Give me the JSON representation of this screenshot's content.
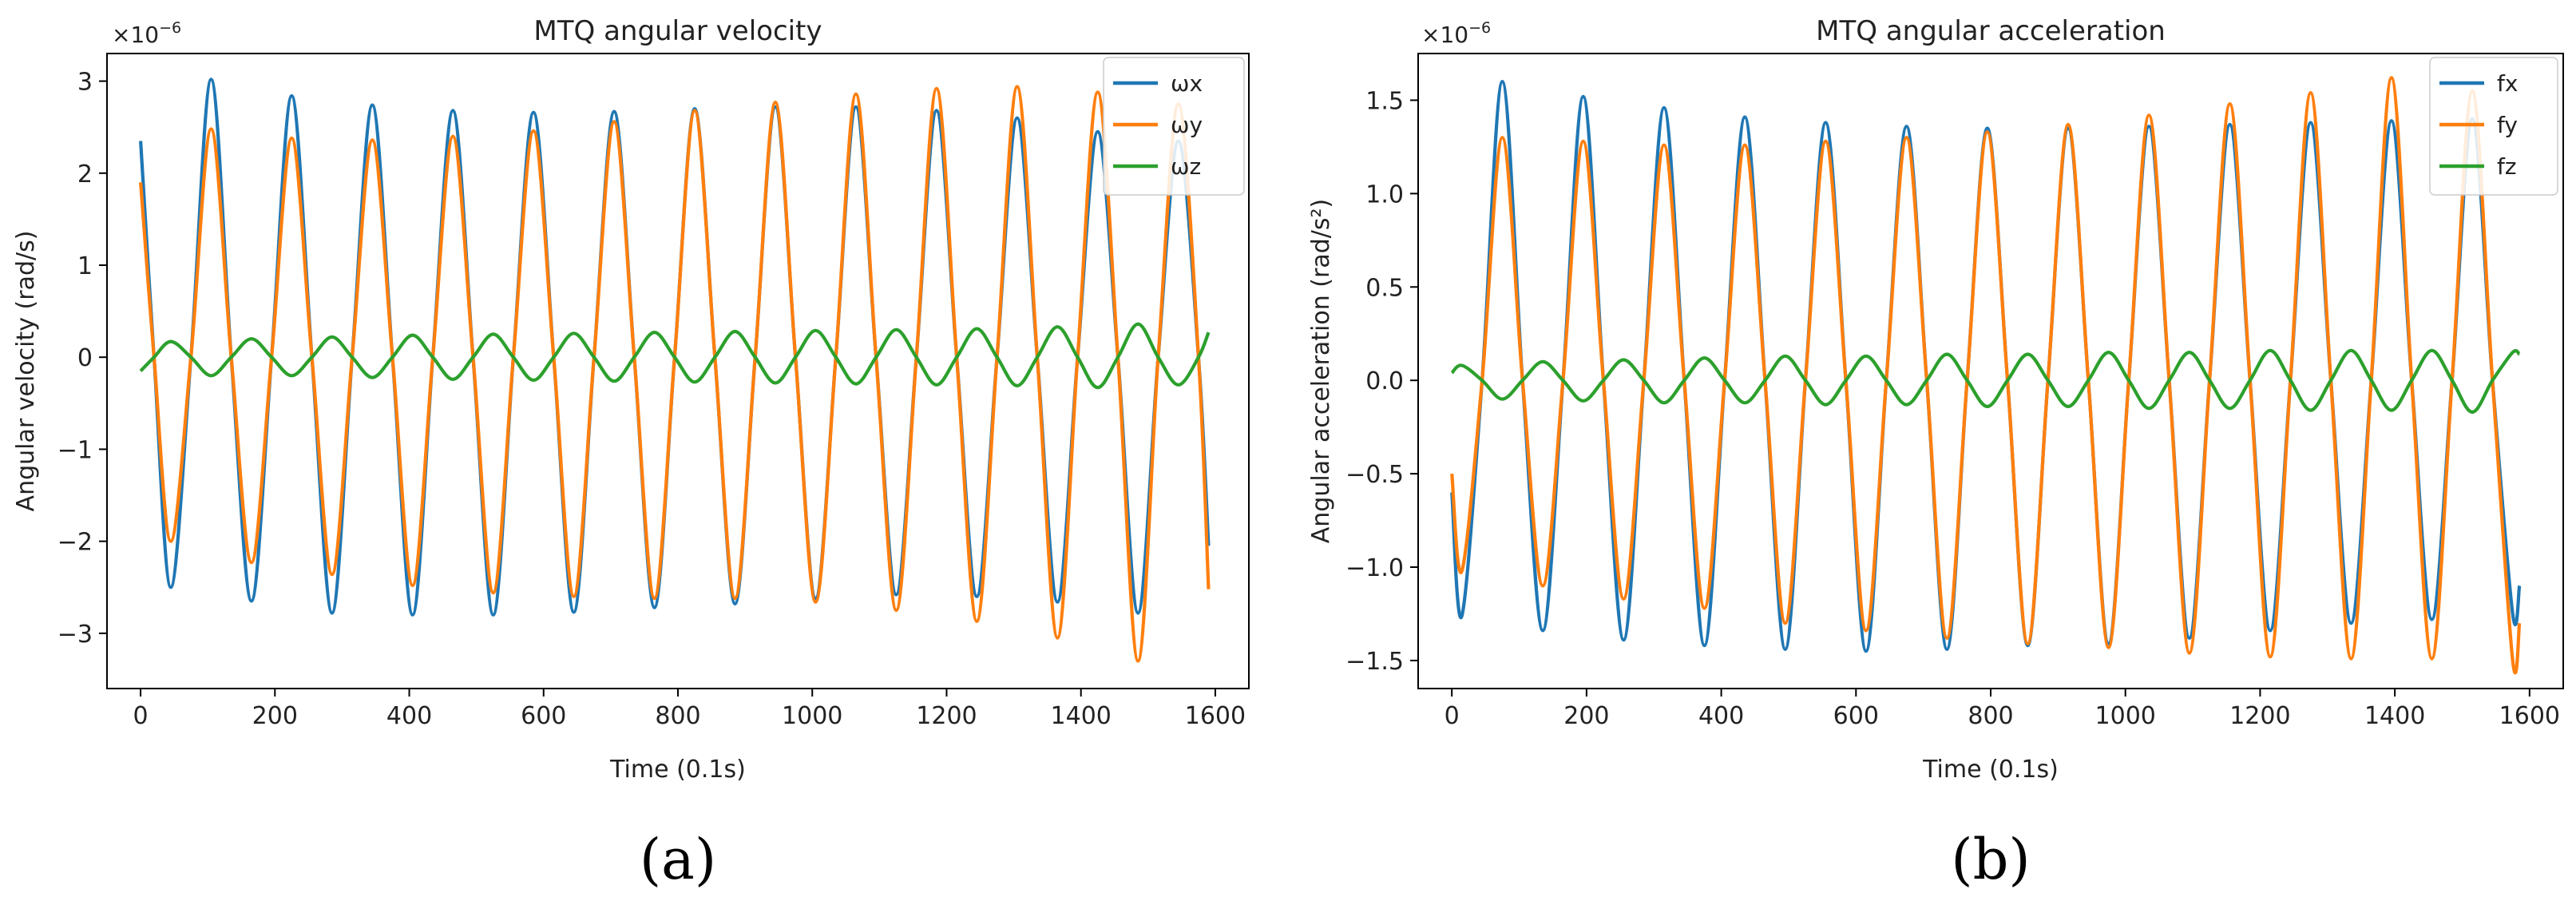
{
  "chart_data": [
    {
      "type": "line",
      "panel_label": "(a)",
      "title": "MTQ angular velocity",
      "xlabel": "Time (0.1s)",
      "ylabel": "Angular velocity (rad/s)",
      "y_scale_base": "×10",
      "y_scale_exp": "−6",
      "xlim": [
        -50,
        1650
      ],
      "ylim": [
        -3.6,
        3.3
      ],
      "xticks": [
        0,
        200,
        400,
        600,
        800,
        1000,
        1200,
        1400,
        1600
      ],
      "xtick_labels": [
        "0",
        "200",
        "400",
        "600",
        "800",
        "1000",
        "1200",
        "1400",
        "1600"
      ],
      "yticks": [
        -3,
        -2,
        -1,
        0,
        1,
        2,
        3
      ],
      "ytick_labels": [
        "−3",
        "−2",
        "−1",
        "0",
        "1",
        "2",
        "3"
      ],
      "legend_position": "top-right",
      "x": [
        0,
        20,
        45,
        75,
        105,
        135,
        165,
        195,
        225,
        255,
        285,
        315,
        345,
        375,
        405,
        435,
        465,
        495,
        525,
        555,
        585,
        615,
        645,
        675,
        705,
        735,
        765,
        795,
        825,
        855,
        885,
        915,
        945,
        975,
        1005,
        1035,
        1065,
        1095,
        1125,
        1155,
        1185,
        1215,
        1245,
        1275,
        1305,
        1335,
        1365,
        1395,
        1425,
        1455,
        1485,
        1515,
        1545,
        1575,
        1590
      ],
      "series": [
        {
          "name": "ωx",
          "color": "#1f77b4",
          "values": [
            2.35,
            0.0,
            -2.5,
            0.0,
            3.02,
            0.0,
            -2.65,
            0.0,
            2.84,
            0.0,
            -2.78,
            0.0,
            2.74,
            0.0,
            -2.8,
            0.0,
            2.68,
            0.0,
            -2.8,
            0.0,
            2.66,
            0.0,
            -2.77,
            0.0,
            2.67,
            0.0,
            -2.72,
            0.0,
            2.7,
            0.0,
            -2.68,
            0.0,
            2.72,
            0.0,
            -2.62,
            0.0,
            2.72,
            0.0,
            -2.58,
            0.0,
            2.68,
            0.0,
            -2.6,
            0.0,
            2.6,
            0.0,
            -2.66,
            0.0,
            2.45,
            0.0,
            -2.78,
            0.0,
            2.35,
            0.0,
            -2.05
          ]
        },
        {
          "name": "ωy",
          "color": "#ff7f0e",
          "values": [
            1.9,
            0.0,
            -2.0,
            0.0,
            2.48,
            0.0,
            -2.23,
            0.0,
            2.38,
            0.0,
            -2.36,
            0.0,
            2.36,
            0.0,
            -2.48,
            0.0,
            2.4,
            0.0,
            -2.56,
            0.0,
            2.46,
            0.0,
            -2.6,
            0.0,
            2.56,
            0.0,
            -2.62,
            0.0,
            2.68,
            0.0,
            -2.62,
            0.0,
            2.77,
            0.0,
            -2.66,
            0.0,
            2.86,
            0.0,
            -2.75,
            0.0,
            2.92,
            0.0,
            -2.87,
            0.0,
            2.94,
            0.0,
            -3.05,
            0.0,
            2.88,
            0.0,
            -3.3,
            0.0,
            2.75,
            0.0,
            -2.52
          ]
        },
        {
          "name": "ωz",
          "color": "#2ca02c",
          "values": [
            -0.15,
            0.0,
            0.17,
            0.0,
            -0.2,
            0.0,
            0.2,
            0.0,
            -0.2,
            0.0,
            0.22,
            0.0,
            -0.22,
            0.0,
            0.24,
            0.0,
            -0.24,
            0.0,
            0.25,
            0.0,
            -0.25,
            0.0,
            0.26,
            0.0,
            -0.26,
            0.0,
            0.27,
            0.0,
            -0.27,
            0.0,
            0.28,
            0.0,
            -0.28,
            0.0,
            0.29,
            0.0,
            -0.29,
            0.0,
            0.3,
            0.0,
            -0.3,
            0.0,
            0.31,
            0.0,
            -0.31,
            0.0,
            0.33,
            0.0,
            -0.33,
            0.0,
            0.36,
            0.0,
            -0.3,
            0.0,
            0.27
          ]
        }
      ]
    },
    {
      "type": "line",
      "panel_label": "(b)",
      "title": "MTQ angular acceleration",
      "xlabel": "Time (0.1s)",
      "ylabel": "Angular acceleration (rad/s²)",
      "y_scale_base": "×10",
      "y_scale_exp": "−6",
      "xlim": [
        -50,
        1650
      ],
      "ylim": [
        -1.65,
        1.75
      ],
      "xticks": [
        0,
        200,
        400,
        600,
        800,
        1000,
        1200,
        1400,
        1600
      ],
      "xtick_labels": [
        "0",
        "200",
        "400",
        "600",
        "800",
        "1000",
        "1200",
        "1400",
        "1600"
      ],
      "yticks": [
        -1.5,
        -1.0,
        -0.5,
        0.0,
        0.5,
        1.0,
        1.5
      ],
      "ytick_labels": [
        "−1.5",
        "−1.0",
        "−0.5",
        "0.0",
        "0.5",
        "1.0",
        "1.5"
      ],
      "legend_position": "top-right",
      "x": [
        0,
        15,
        45,
        75,
        105,
        135,
        165,
        195,
        225,
        255,
        285,
        315,
        345,
        375,
        405,
        435,
        465,
        495,
        525,
        555,
        585,
        615,
        645,
        675,
        705,
        735,
        765,
        795,
        825,
        855,
        885,
        915,
        945,
        975,
        1005,
        1035,
        1065,
        1095,
        1125,
        1155,
        1185,
        1215,
        1245,
        1275,
        1305,
        1335,
        1365,
        1395,
        1425,
        1455,
        1485,
        1515,
        1545,
        1575,
        1585
      ],
      "series": [
        {
          "name": "fx",
          "color": "#1f77b4",
          "values": [
            -0.6,
            -1.26,
            0.0,
            1.6,
            0.0,
            -1.34,
            0.0,
            1.52,
            0.0,
            -1.39,
            0.0,
            1.46,
            0.0,
            -1.42,
            0.0,
            1.41,
            0.0,
            -1.44,
            0.0,
            1.38,
            0.0,
            -1.45,
            0.0,
            1.36,
            0.0,
            -1.44,
            0.0,
            1.35,
            0.0,
            -1.42,
            0.0,
            1.35,
            0.0,
            -1.41,
            0.0,
            1.36,
            0.0,
            -1.38,
            0.0,
            1.37,
            0.0,
            -1.34,
            0.0,
            1.38,
            0.0,
            -1.3,
            0.0,
            1.39,
            0.0,
            -1.28,
            0.0,
            1.4,
            0.0,
            -1.25,
            -1.1
          ]
        },
        {
          "name": "fy",
          "color": "#ff7f0e",
          "values": [
            -0.5,
            -1.02,
            0.0,
            1.3,
            0.0,
            -1.1,
            0.0,
            1.28,
            0.0,
            -1.17,
            0.0,
            1.26,
            0.0,
            -1.22,
            0.0,
            1.26,
            0.0,
            -1.3,
            0.0,
            1.28,
            0.0,
            -1.34,
            0.0,
            1.3,
            0.0,
            -1.38,
            0.0,
            1.33,
            0.0,
            -1.41,
            0.0,
            1.37,
            0.0,
            -1.43,
            0.0,
            1.42,
            0.0,
            -1.46,
            0.0,
            1.48,
            0.0,
            -1.48,
            0.0,
            1.54,
            0.0,
            -1.49,
            0.0,
            1.62,
            0.0,
            -1.49,
            0.0,
            1.55,
            0.0,
            -1.5,
            -1.3
          ]
        },
        {
          "name": "fz",
          "color": "#2ca02c",
          "values": [
            0.04,
            0.08,
            0.0,
            -0.1,
            0.0,
            0.1,
            0.0,
            -0.11,
            0.0,
            0.11,
            0.0,
            -0.12,
            0.0,
            0.12,
            0.0,
            -0.12,
            0.0,
            0.13,
            0.0,
            -0.13,
            0.0,
            0.13,
            0.0,
            -0.13,
            0.0,
            0.14,
            0.0,
            -0.14,
            0.0,
            0.14,
            0.0,
            -0.14,
            0.0,
            0.15,
            0.0,
            -0.15,
            0.0,
            0.15,
            0.0,
            -0.15,
            0.0,
            0.16,
            0.0,
            -0.16,
            0.0,
            0.16,
            0.0,
            -0.16,
            0.0,
            0.16,
            0.0,
            -0.17,
            0.0,
            0.15,
            0.14
          ]
        }
      ]
    }
  ]
}
